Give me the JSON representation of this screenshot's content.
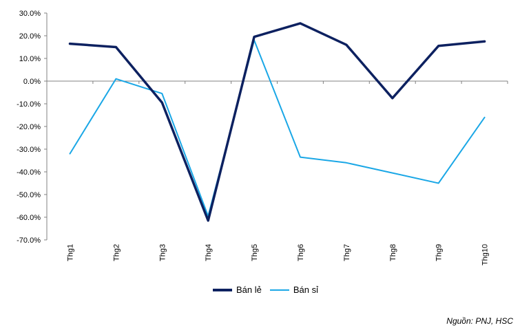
{
  "chart_data": {
    "type": "line",
    "title": "",
    "xlabel": "",
    "ylabel": "",
    "categories": [
      "Thg1",
      "Thg2",
      "Thg3",
      "Thg4",
      "Thg5",
      "Thg6",
      "Thg7",
      "Thg8",
      "Thg9",
      "Thg10"
    ],
    "ylim": [
      -70,
      30
    ],
    "yticks": [
      30,
      20,
      10,
      0,
      -10,
      -20,
      -30,
      -40,
      -50,
      -60,
      -70
    ],
    "ytick_labels": [
      "30.0%",
      "20.0%",
      "10.0%",
      "0.0%",
      "-10.0%",
      "-20.0%",
      "-30.0%",
      "-40.0%",
      "-50.0%",
      "-60.0%",
      "-70.0%"
    ],
    "grid": false,
    "legend_position": "bottom",
    "series": [
      {
        "name": "Bán lẻ",
        "color": "#0d2160",
        "values": [
          16.5,
          15.0,
          -9.5,
          -61.5,
          19.5,
          25.5,
          16.0,
          -7.5,
          15.5,
          17.5
        ]
      },
      {
        "name": "Bán sỉ",
        "color": "#1aa7e6",
        "values": [
          -32.0,
          1.0,
          -5.5,
          -59.5,
          18.0,
          -33.5,
          -36.0,
          -40.5,
          -45.0,
          -16.0
        ]
      }
    ]
  },
  "source": "Nguồn: PNJ, HSC"
}
